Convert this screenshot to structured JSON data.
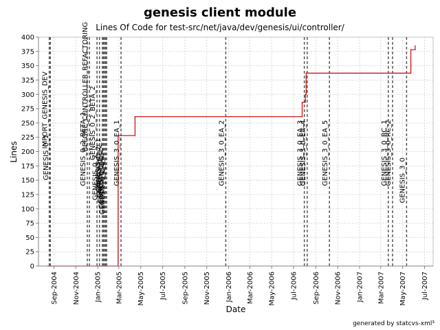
{
  "chart_data": {
    "type": "line",
    "title": "genesis client module",
    "subtitle": "Lines Of Code for test-src/net/java/dev/genesis/ui/controller/",
    "xlabel": "Date",
    "ylabel": "Lines",
    "footer": "generated by statcvs-xml³",
    "grid": true,
    "x_range": [
      "2004-07-20",
      "2007-07-25"
    ],
    "ylim": [
      0,
      400
    ],
    "y_ticks": [
      0,
      25,
      50,
      75,
      100,
      125,
      150,
      175,
      200,
      225,
      250,
      275,
      300,
      325,
      350,
      375,
      400
    ],
    "x_ticks": [
      {
        "date": "2004-09-01",
        "label": "Sep-2004"
      },
      {
        "date": "2004-11-01",
        "label": "Nov-2004"
      },
      {
        "date": "2005-01-01",
        "label": "Jan-2005"
      },
      {
        "date": "2005-03-01",
        "label": "Mar-2005"
      },
      {
        "date": "2005-05-01",
        "label": "May-2005"
      },
      {
        "date": "2005-07-01",
        "label": "Jul-2005"
      },
      {
        "date": "2005-09-01",
        "label": "Sep-2005"
      },
      {
        "date": "2005-11-01",
        "label": "Nov-2005"
      },
      {
        "date": "2006-01-01",
        "label": "Jan-2006"
      },
      {
        "date": "2006-03-01",
        "label": "Mar-2006"
      },
      {
        "date": "2006-05-01",
        "label": "May-2006"
      },
      {
        "date": "2006-07-01",
        "label": "Jul-2006"
      },
      {
        "date": "2006-09-01",
        "label": "Sep-2006"
      },
      {
        "date": "2006-11-01",
        "label": "Nov-2006"
      },
      {
        "date": "2007-01-01",
        "label": "Jan-2007"
      },
      {
        "date": "2007-03-01",
        "label": "Mar-2007"
      },
      {
        "date": "2007-05-01",
        "label": "May-2007"
      },
      {
        "date": "2007-07-01",
        "label": "Jul-2007"
      }
    ],
    "series": [
      {
        "color": "#cc0000",
        "points": [
          {
            "x": "2004-08-14",
            "y": 0
          },
          {
            "x": "2005-02-27",
            "y": 0
          },
          {
            "x": "2005-02-27",
            "y": 228
          },
          {
            "x": "2005-04-15",
            "y": 228
          },
          {
            "x": "2005-04-15",
            "y": 261
          },
          {
            "x": "2006-07-25",
            "y": 261
          },
          {
            "x": "2006-07-25",
            "y": 286
          },
          {
            "x": "2006-08-03",
            "y": 286
          },
          {
            "x": "2006-08-03",
            "y": 300
          },
          {
            "x": "2006-08-05",
            "y": 300
          },
          {
            "x": "2006-08-05",
            "y": 337
          },
          {
            "x": "2007-05-24",
            "y": 337
          },
          {
            "x": "2007-05-24",
            "y": 378
          },
          {
            "x": "2007-06-05",
            "y": 378
          },
          {
            "x": "2007-06-05",
            "y": 385
          }
        ]
      }
    ],
    "tags": [
      {
        "date": "2004-08-19",
        "label": "IMPORT_GENESIS_DEV",
        "label_y": 205
      },
      {
        "date": "2004-08-22",
        "label": "GENESIS_0_1",
        "label_y": 150
      },
      {
        "date": "2004-12-03",
        "label": "GENESIS_0_2_BETA_1",
        "label_y": 140
      },
      {
        "date": "2004-12-09",
        "label": "BEFORE_CONTROLLER_REFACTORING",
        "label_y": 200
      },
      {
        "date": "2004-12-30",
        "label": "GENESIS_0_2_BETA_2",
        "label_y": 185
      },
      {
        "date": "2005-01-06",
        "label": "GENESIS_0_2",
        "label_y": 115
      },
      {
        "date": "2005-01-14",
        "label": "GENESIS_0_2_1",
        "label_y": 130
      },
      {
        "date": "2005-01-17",
        "label": "GENESIS_0_2_2",
        "label_y": 120
      },
      {
        "date": "2005-01-20",
        "label": "GENESIS_0_2_3",
        "label_y": 110
      },
      {
        "date": "2005-01-23",
        "label": "GENESIS_0_2_4",
        "label_y": 100
      },
      {
        "date": "2005-01-26",
        "label": "GENESIS_0_2_5",
        "label_y": 90
      },
      {
        "date": "2005-03-07",
        "label": "GENESIS_3_0_EA_1",
        "label_y": 140
      },
      {
        "date": "2005-12-24",
        "label": "GENESIS_3_0_EA_2",
        "label_y": 140
      },
      {
        "date": "2006-07-31",
        "label": "GENESIS_3_0_EA_3",
        "label_y": 140
      },
      {
        "date": "2006-08-08",
        "label": "GENESIS_3_0_EA_4",
        "label_y": 140
      },
      {
        "date": "2006-10-09",
        "label": "GENESIS_3_0_EA_5",
        "label_y": 140
      },
      {
        "date": "2007-03-22",
        "label": "GENESIS_3_0_RC_1",
        "label_y": 140
      },
      {
        "date": "2007-04-03",
        "label": "GENESIS_3_0_RC_2",
        "label_y": 140
      },
      {
        "date": "2007-05-12",
        "label": "GENESIS_3_0",
        "label_y": 110
      }
    ]
  }
}
